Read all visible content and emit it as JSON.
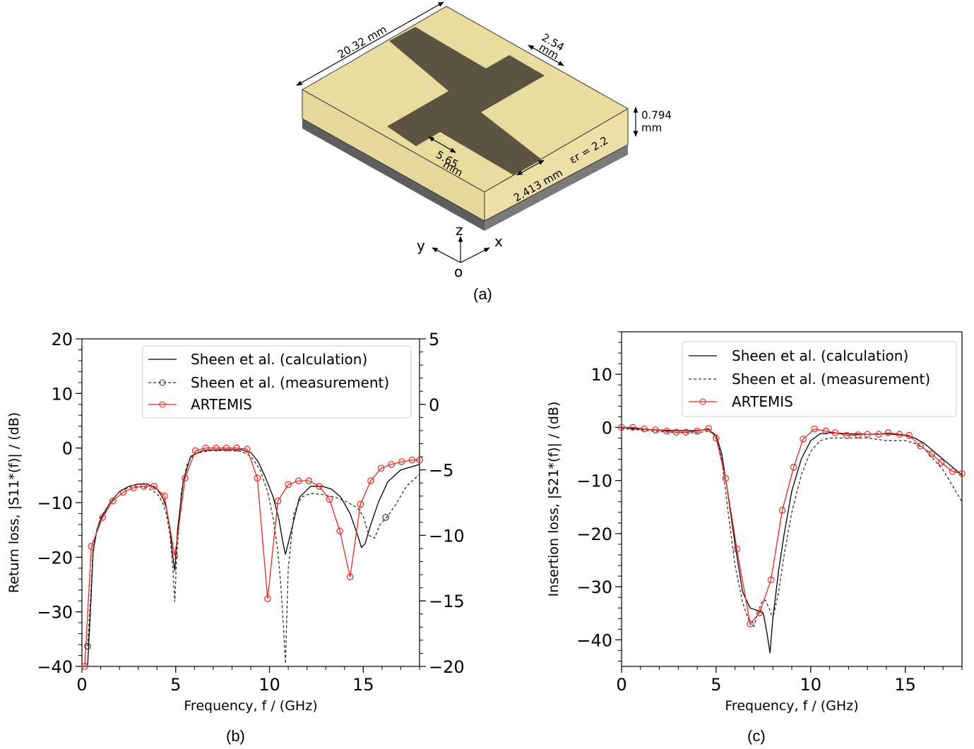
{
  "figure": {
    "caption_a": "(a)",
    "caption_b": "(b)",
    "caption_c": "(c)",
    "colors": {
      "calc": "#000000",
      "meas": "#333333",
      "artemis": "#e8251f",
      "substrate": "#e8db9e",
      "strip": "#5c5440",
      "ground": "#6e6e6e"
    }
  },
  "schematic": {
    "dim_length": "20.32 mm",
    "dim_stub_top_1": "2.54",
    "dim_stub_top_2": "mm",
    "dim_height_1": "0.794",
    "dim_height_2": "mm",
    "dim_width_1": "5.65",
    "dim_width_2": "mm",
    "dim_feed": "2.413 mm",
    "permittivity": "εr = 2.2",
    "axis_z": "z",
    "axis_y": "y",
    "axis_x": "x",
    "axis_o": "o"
  },
  "chart_data": [
    {
      "type": "line",
      "xlabel": "Frequency, f / (GHz)",
      "ylabel": "Return loss, |S11*(f)| / (dB)",
      "xlim": [
        0,
        18
      ],
      "ylim": [
        -40,
        20
      ],
      "y2lim": [
        -20,
        5
      ],
      "xticks": [
        "0",
        "5",
        "10",
        "15"
      ],
      "yticks": [
        "20",
        "10",
        "0",
        "−10",
        "−20",
        "−30",
        "−40"
      ],
      "y2ticks": [
        "5",
        "0",
        "−5",
        "−10",
        "−15",
        "−20"
      ],
      "legend": [
        "Sheen et al. (calculation)",
        "Sheen et al. (measurement)",
        "ARTEMIS"
      ],
      "legend_position": "top-right",
      "series": [
        {
          "name": "Sheen et al. (calculation)",
          "x": [
            0.3,
            0.45,
            0.6,
            0.8,
            1.0,
            1.5,
            2.0,
            2.5,
            3.0,
            3.5,
            4.0,
            4.3,
            4.5,
            4.7,
            4.85,
            4.95,
            5.1,
            5.4,
            5.8,
            6.5,
            7.5,
            8.5,
            9.0,
            9.4,
            9.8,
            10.2,
            10.5,
            10.7,
            10.85,
            11.1,
            11.6,
            12.2,
            12.8,
            13.3,
            13.8,
            14.3,
            14.7,
            14.9,
            15.1,
            15.4,
            15.8,
            16.3,
            17.0,
            18.0
          ],
          "y": [
            -40,
            -30,
            -19,
            -15,
            -13,
            -10,
            -8,
            -7,
            -6.6,
            -6.6,
            -7.5,
            -9,
            -11,
            -15,
            -20,
            -22.5,
            -15,
            -6,
            -1.5,
            -0.4,
            -0.3,
            -0.3,
            -0.8,
            -2.5,
            -5.5,
            -9,
            -13,
            -17,
            -19.5,
            -16,
            -9,
            -7,
            -7,
            -7.5,
            -9,
            -12,
            -16,
            -18.2,
            -17.5,
            -14,
            -10,
            -6.2,
            -4,
            -3
          ]
        },
        {
          "name": "Sheen et al. (measurement)",
          "x": [
            0.3,
            0.45,
            0.6,
            0.8,
            1.0,
            1.5,
            2.0,
            2.5,
            3.0,
            3.5,
            4.0,
            4.3,
            4.5,
            4.7,
            4.85,
            4.95,
            5.05,
            5.3,
            5.6,
            6.0,
            7.0,
            8.5,
            9.0,
            9.5,
            9.9,
            10.2,
            10.45,
            10.6,
            10.75,
            10.85,
            11.0,
            11.3,
            11.7,
            12.2,
            12.8,
            13.5,
            14.2,
            14.7,
            15.0,
            15.3,
            15.6,
            15.9,
            16.3,
            16.8,
            17.3,
            18.0
          ],
          "y": [
            -36.3,
            -28,
            -18,
            -15,
            -12.7,
            -10,
            -8,
            -7.2,
            -7,
            -7.3,
            -8.3,
            -10,
            -12,
            -16,
            -22,
            -28.2,
            -20,
            -8,
            -3,
            -1,
            -0.4,
            -0.6,
            -1.5,
            -4,
            -8,
            -13,
            -19,
            -25,
            -33,
            -39.5,
            -22,
            -12,
            -9,
            -8.3,
            -8.5,
            -9,
            -10,
            -11,
            -12.5,
            -16,
            -16.5,
            -14,
            -12.5,
            -10,
            -7,
            -4.8
          ]
        },
        {
          "name": "ARTEMIS",
          "x": [
            0.15,
            0.5,
            1.1,
            1.65,
            2.2,
            2.75,
            3.3,
            3.85,
            4.4,
            4.95,
            5.5,
            6.05,
            6.6,
            7.15,
            7.7,
            8.25,
            8.8,
            9.35,
            9.9,
            10.45,
            11.0,
            11.55,
            12.1,
            12.65,
            13.2,
            13.75,
            14.3,
            14.85,
            15.4,
            15.95,
            16.5,
            17.05,
            17.6,
            18.0
          ],
          "y": [
            -40,
            -18,
            -12.7,
            -9.7,
            -8.1,
            -7.3,
            -7,
            -7,
            -8.8,
            -19.8,
            -5.5,
            -0.5,
            0,
            0,
            0,
            0,
            -0.2,
            -5.5,
            -27.6,
            -9.7,
            -6.7,
            -6,
            -6,
            -7,
            -9.4,
            -15.2,
            -23.6,
            -10.3,
            -6,
            -3.7,
            -3,
            -2.5,
            -2.2,
            -2.2
          ]
        }
      ],
      "marked_points_meas": [
        [
          0.3,
          -36.3
        ],
        [
          16.2,
          -12.7
        ]
      ]
    },
    {
      "type": "line",
      "xlabel": "Frequency, f / (GHz)",
      "ylabel": "Insertion loss, |S21*(f)| / (dB)",
      "xlim": [
        0,
        18
      ],
      "ylim": [
        -45,
        18
      ],
      "xticks": [
        "0",
        "5",
        "10",
        "15"
      ],
      "yticks": [
        "10",
        "0",
        "−10",
        "−20",
        "−30",
        "−40"
      ],
      "legend": [
        "Sheen et al. (calculation)",
        "Sheen et al. (measurement)",
        "ARTEMIS"
      ],
      "legend_position": "top-right",
      "series": [
        {
          "name": "Sheen et al. (calculation)",
          "x": [
            0,
            1,
            2,
            3,
            4,
            4.6,
            5.0,
            5.3,
            5.6,
            6.0,
            6.4,
            6.8,
            7.2,
            7.5,
            7.7,
            7.85,
            8.0,
            8.3,
            8.6,
            9.0,
            9.5,
            10.0,
            10.5,
            11,
            12,
            13,
            14,
            15,
            15.5,
            16,
            16.5,
            17,
            17.5,
            18
          ],
          "y": [
            0,
            -0.3,
            -0.5,
            -0.6,
            -0.6,
            -0.4,
            -1.5,
            -5,
            -12,
            -22,
            -31,
            -34,
            -34.5,
            -35,
            -39,
            -42.5,
            -36,
            -27,
            -20,
            -12,
            -6,
            -2.5,
            -1.2,
            -1,
            -1.2,
            -1.3,
            -1.2,
            -1.5,
            -2,
            -3,
            -4.5,
            -6,
            -7.5,
            -9
          ]
        },
        {
          "name": "Sheen et al. (measurement)",
          "x": [
            0,
            1,
            2,
            3,
            4,
            4.6,
            5.0,
            5.3,
            5.6,
            6.0,
            6.4,
            6.8,
            7.0,
            7.2,
            7.4,
            7.6,
            7.8,
            8.0,
            8.3,
            8.6,
            9.0,
            9.5,
            10.0,
            10.5,
            11,
            12,
            13,
            14,
            15,
            15.5,
            16,
            16.5,
            17,
            17.5,
            18
          ],
          "y": [
            -0.2,
            -0.5,
            -0.8,
            -1,
            -1,
            -0.7,
            -1.5,
            -6,
            -15,
            -26,
            -33,
            -37,
            -37.5,
            -35,
            -33,
            -32.5,
            -34,
            -36,
            -31,
            -24,
            -16,
            -9,
            -4.5,
            -2.5,
            -2,
            -2,
            -2,
            -2.5,
            -2.5,
            -3,
            -4,
            -6,
            -8,
            -11,
            -14
          ]
        },
        {
          "name": "ARTEMIS",
          "x": [
            0,
            0.6,
            1.2,
            1.8,
            2.4,
            2.9,
            3.4,
            4.0,
            4.6,
            5.0,
            5.5,
            6.1,
            6.8,
            7.3,
            7.9,
            8.5,
            9.1,
            9.6,
            10.2,
            10.8,
            11.3,
            11.9,
            12.5,
            13.0,
            13.6,
            14.1,
            14.7,
            15.2,
            15.8,
            16.4,
            16.9,
            17.5,
            18
          ],
          "y": [
            0,
            0,
            -0.3,
            -0.5,
            -0.7,
            -0.9,
            -0.9,
            -0.7,
            -0.2,
            -2,
            -9.6,
            -22.9,
            -37,
            -34.9,
            -28.7,
            -15.6,
            -7.5,
            -2.2,
            -0.3,
            -0.7,
            -1,
            -1.5,
            -1.4,
            -1.3,
            -1.3,
            -1,
            -1.3,
            -1.5,
            -3.5,
            -5,
            -6.6,
            -8.3,
            -8.7
          ]
        }
      ]
    }
  ]
}
